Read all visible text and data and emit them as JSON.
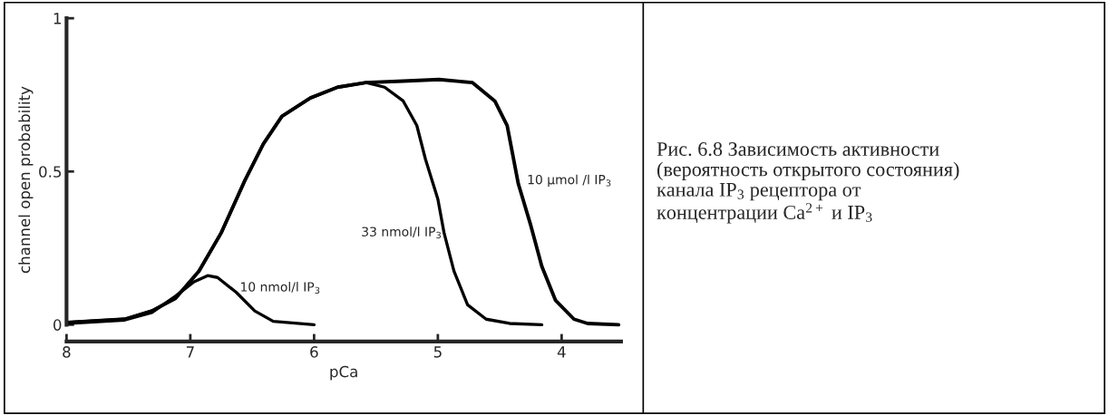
{
  "chart_data": {
    "type": "line",
    "xlabel": "pCa",
    "ylabel": "channel open probability",
    "xlim": [
      8,
      3.52
    ],
    "ylim": [
      -0.055,
      1
    ],
    "xticks": [
      8,
      7,
      6,
      5,
      4
    ],
    "yticks": [
      0,
      0.5,
      1
    ],
    "grid": false,
    "legend": false,
    "marker": "none",
    "line_style": "solid",
    "series": [
      {
        "name": "10 nmol/l IP$_{3}$",
        "color": "#000000",
        "x": [
          8,
          7.53,
          7.31,
          7.12,
          6.97,
          6.86,
          6.78,
          6.63,
          6.48,
          6.33,
          6.0
        ],
        "values": [
          0.004,
          0.015,
          0.04,
          0.093,
          0.14,
          0.16,
          0.154,
          0.106,
          0.045,
          0.011,
          0
        ]
      },
      {
        "name": "33 nmol/l IP$_{3}$",
        "color": "#000000",
        "x": [
          8,
          7.53,
          7.31,
          7.12,
          6.93,
          6.75,
          6.56,
          6.41,
          6.26,
          6.03,
          5.81,
          5.58,
          5.43,
          5.28,
          5.17,
          5.1,
          5.0,
          4.95,
          4.87,
          4.76,
          4.61,
          4.42,
          4.16
        ],
        "values": [
          0.007,
          0.018,
          0.045,
          0.086,
          0.175,
          0.3,
          0.47,
          0.59,
          0.68,
          0.74,
          0.775,
          0.79,
          0.775,
          0.73,
          0.65,
          0.54,
          0.41,
          0.3,
          0.175,
          0.065,
          0.018,
          0.004,
          0
        ]
      },
      {
        "name": "10 µmol /l IP$_{3}$",
        "color": "#000000",
        "x": [
          8,
          7.53,
          7.31,
          7.12,
          6.93,
          6.75,
          6.56,
          6.41,
          6.26,
          6.03,
          5.81,
          5.58,
          5.28,
          4.99,
          4.72,
          4.54,
          4.44,
          4.35,
          4.25,
          4.16,
          4.05,
          3.9,
          3.79,
          3.54
        ],
        "values": [
          0.007,
          0.018,
          0.045,
          0.086,
          0.175,
          0.3,
          0.47,
          0.59,
          0.68,
          0.74,
          0.775,
          0.79,
          0.795,
          0.8,
          0.79,
          0.73,
          0.65,
          0.46,
          0.325,
          0.19,
          0.08,
          0.018,
          0.004,
          0
        ]
      }
    ],
    "annotations": [
      "Рис. 6.8 Зависимость активности\n(вероятность открытого состояния)\nканала IP$_{3}$ рецептора от\nконцентрации Ca$^{2+}$ и IP$_{3}$"
    ]
  }
}
